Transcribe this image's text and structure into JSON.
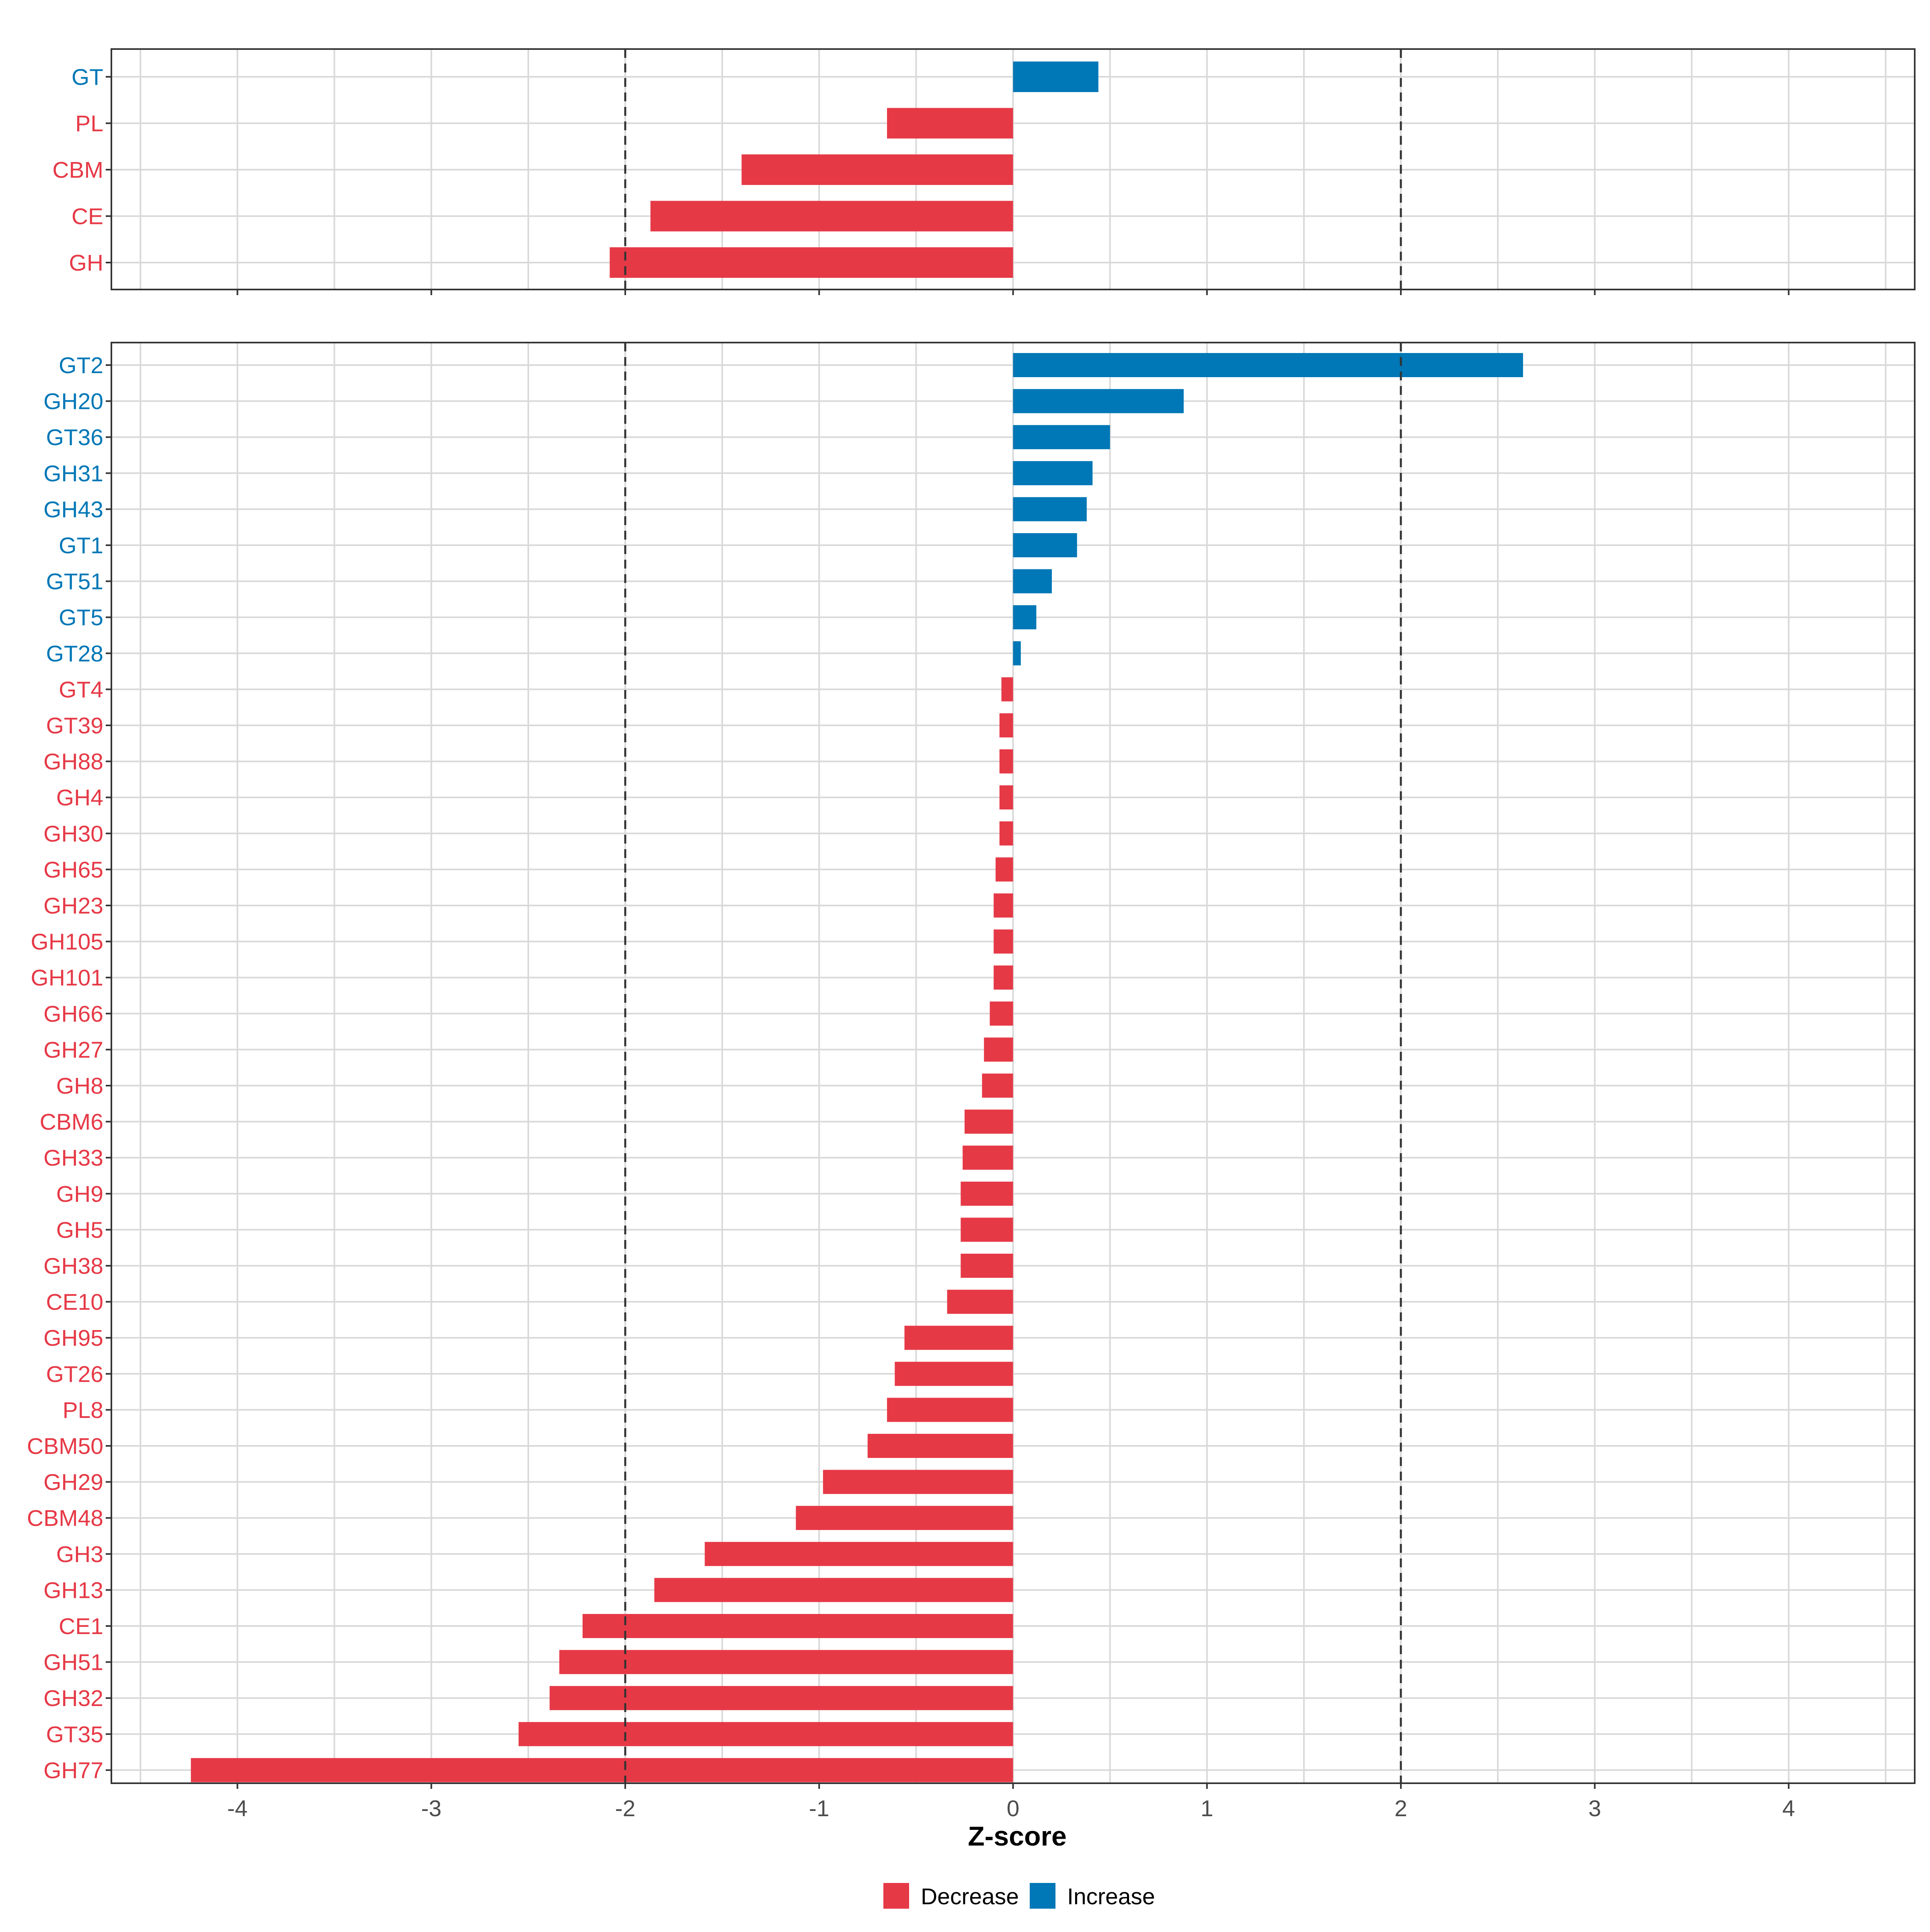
{
  "colors": {
    "decrease": "#e63946",
    "increase": "#0077b6",
    "grid": "#d9d9d9",
    "panel_border": "#333333",
    "threshold": "#333333"
  },
  "chart_data": [
    {
      "type": "bar",
      "orientation": "horizontal",
      "panel": "top",
      "categories": [
        "GT",
        "PL",
        "CBM",
        "CE",
        "GH"
      ],
      "values": [
        0.44,
        -0.65,
        -1.4,
        -1.87,
        -2.08
      ],
      "xlim": [
        -4.65,
        4.65
      ],
      "threshold_lines": [
        -2,
        2
      ],
      "grid": true
    },
    {
      "type": "bar",
      "orientation": "horizontal",
      "panel": "bottom",
      "categories": [
        "GT2",
        "GH20",
        "GT36",
        "GH31",
        "GH43",
        "GT1",
        "GT51",
        "GT5",
        "GT28",
        "GT4",
        "GT39",
        "GH88",
        "GH4",
        "GH30",
        "GH65",
        "GH23",
        "GH105",
        "GH101",
        "GH66",
        "GH27",
        "GH8",
        "CBM6",
        "GH33",
        "GH9",
        "GH5",
        "GH38",
        "CE10",
        "GH95",
        "GT26",
        "PL8",
        "CBM50",
        "GH29",
        "CBM48",
        "GH3",
        "GH13",
        "CE1",
        "GH51",
        "GH32",
        "GT35",
        "GH77"
      ],
      "values": [
        2.63,
        0.88,
        0.5,
        0.41,
        0.38,
        0.33,
        0.2,
        0.12,
        0.04,
        -0.06,
        -0.07,
        -0.07,
        -0.07,
        -0.07,
        -0.09,
        -0.1,
        -0.1,
        -0.1,
        -0.12,
        -0.15,
        -0.16,
        -0.25,
        -0.26,
        -0.27,
        -0.27,
        -0.27,
        -0.34,
        -0.56,
        -0.61,
        -0.65,
        -0.75,
        -0.98,
        -1.12,
        -1.59,
        -1.85,
        -2.22,
        -2.34,
        -2.39,
        -2.55,
        -4.24
      ],
      "xlim": [
        -4.65,
        4.65
      ],
      "threshold_lines": [
        -2,
        2
      ],
      "grid": true
    }
  ],
  "axis": {
    "xlabel": "Z-score",
    "ticks": [
      -4,
      -3,
      -2,
      -1,
      0,
      1,
      2,
      3,
      4
    ],
    "tick_labels": [
      "-4",
      "-3",
      "-2",
      "-1",
      "0",
      "1",
      "2",
      "3",
      "4"
    ]
  },
  "legend": {
    "position": "bottom",
    "items": [
      {
        "label": "Decrease",
        "key": "decrease"
      },
      {
        "label": "Increase",
        "key": "increase"
      }
    ]
  }
}
